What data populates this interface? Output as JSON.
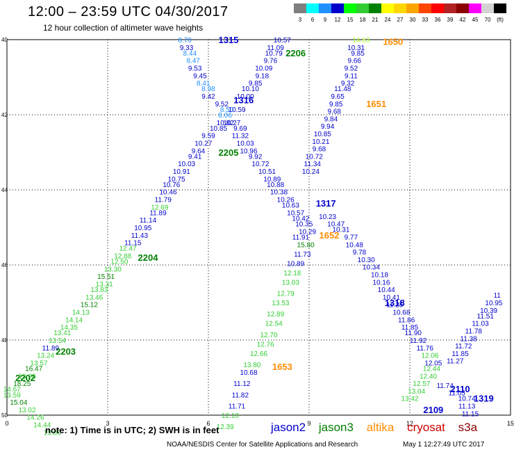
{
  "header": {
    "title": "12:00 – 23:59 UTC 04/30/2017",
    "subtitle": "12 hour collection of altimeter wave heights"
  },
  "color_scale": {
    "unit": "(ft)",
    "bins": [
      {
        "label": "3",
        "color": "#7f7f7f"
      },
      {
        "label": "6",
        "color": "#00ffff"
      },
      {
        "label": "9",
        "color": "#1e90ff"
      },
      {
        "label": "12",
        "color": "#0000cd"
      },
      {
        "label": "15",
        "color": "#00ff00"
      },
      {
        "label": "18",
        "color": "#32cd32"
      },
      {
        "label": "21",
        "color": "#008000"
      },
      {
        "label": "24",
        "color": "#ffff00"
      },
      {
        "label": "27",
        "color": "#ffd700"
      },
      {
        "label": "30",
        "color": "#ffa500"
      },
      {
        "label": "33",
        "color": "#ff4500"
      },
      {
        "label": "36",
        "color": "#ff0000"
      },
      {
        "label": "39",
        "color": "#b22222"
      },
      {
        "label": "42",
        "color": "#8b0000"
      },
      {
        "label": "45",
        "color": "#ff00ff"
      },
      {
        "label": "70",
        "color": "#d3d3d3"
      },
      {
        "label": "(ft)",
        "color": "#000000"
      }
    ]
  },
  "axes": {
    "x_ticks": [
      "0",
      "3",
      "6",
      "9",
      "12",
      "15"
    ],
    "y_ticks": [
      "40",
      "42",
      "44",
      "46",
      "48",
      "50"
    ]
  },
  "passes": [
    {
      "label": "1315",
      "color": "#0000cd",
      "x": 6.6,
      "y": 40.0
    },
    {
      "label": "2206",
      "color": "#008000",
      "x": 8.6,
      "y": 40.35
    },
    {
      "label": "1650",
      "color": "#ff8c00",
      "x": 11.5,
      "y": 40.05
    },
    {
      "label": "1316",
      "color": "#0000cd",
      "x": 7.05,
      "y": 41.6
    },
    {
      "label": "1651",
      "color": "#ff8c00",
      "x": 11.0,
      "y": 41.7
    },
    {
      "label": "2205",
      "color": "#008000",
      "x": 6.6,
      "y": 43.0
    },
    {
      "label": "1317",
      "color": "#0000cd",
      "x": 9.5,
      "y": 44.35
    },
    {
      "label": "1652",
      "color": "#ff8c00",
      "x": 9.6,
      "y": 45.2
    },
    {
      "label": "2204",
      "color": "#008000",
      "x": 4.2,
      "y": 45.8
    },
    {
      "label": "1318",
      "color": "#0000cd",
      "x": 11.55,
      "y": 47.0
    },
    {
      "label": "2203",
      "color": "#008000",
      "x": 1.75,
      "y": 48.3
    },
    {
      "label": "1653",
      "color": "#ff8c00",
      "x": 8.2,
      "y": 48.7
    },
    {
      "label": "2202",
      "color": "#008000",
      "x": 0.55,
      "y": 49.0
    },
    {
      "label": "2110",
      "color": "#0000cd",
      "x": 13.5,
      "y": 49.3
    },
    {
      "label": "1319",
      "color": "#0000cd",
      "x": 14.2,
      "y": 49.55
    },
    {
      "label": "2109",
      "color": "#0000cd",
      "x": 12.7,
      "y": 49.85
    }
  ],
  "observations": [
    {
      "v": "8.70",
      "c": "#1e90ff",
      "x": 5.3,
      "y": 40.0
    },
    {
      "v": "9.33",
      "c": "#0000cd",
      "x": 5.35,
      "y": 40.2
    },
    {
      "v": "8.44",
      "c": "#1e90ff",
      "x": 5.45,
      "y": 40.35
    },
    {
      "v": "8.47",
      "c": "#1e90ff",
      "x": 5.55,
      "y": 40.55
    },
    {
      "v": "9.53",
      "c": "#0000cd",
      "x": 5.6,
      "y": 40.75
    },
    {
      "v": "9.45",
      "c": "#0000cd",
      "x": 5.75,
      "y": 40.95
    },
    {
      "v": "8.41",
      "c": "#1e90ff",
      "x": 5.85,
      "y": 41.15
    },
    {
      "v": "8.98",
      "c": "#1e90ff",
      "x": 6.0,
      "y": 41.3
    },
    {
      "v": "9.42",
      "c": "#0000cd",
      "x": 6.0,
      "y": 41.5
    },
    {
      "v": "9.52",
      "c": "#0000cd",
      "x": 6.4,
      "y": 41.7
    },
    {
      "v": "8.50",
      "c": "#1e90ff",
      "x": 6.55,
      "y": 41.85
    },
    {
      "v": "8.06",
      "c": "#1e90ff",
      "x": 6.5,
      "y": 42.0
    },
    {
      "v": "10.82",
      "c": "#0000cd",
      "x": 6.5,
      "y": 42.2
    },
    {
      "v": "10.85",
      "c": "#0000cd",
      "x": 6.3,
      "y": 42.35
    },
    {
      "v": "9.59",
      "c": "#0000cd",
      "x": 6.0,
      "y": 42.55
    },
    {
      "v": "10.27",
      "c": "#0000cd",
      "x": 5.85,
      "y": 42.75
    },
    {
      "v": "9.64",
      "c": "#0000cd",
      "x": 5.7,
      "y": 42.95
    },
    {
      "v": "9.41",
      "c": "#0000cd",
      "x": 5.6,
      "y": 43.1
    },
    {
      "v": "10.03",
      "c": "#0000cd",
      "x": 5.35,
      "y": 43.3
    },
    {
      "v": "10.91",
      "c": "#0000cd",
      "x": 5.2,
      "y": 43.5
    },
    {
      "v": "10.75",
      "c": "#0000cd",
      "x": 5.05,
      "y": 43.7
    },
    {
      "v": "10.76",
      "c": "#0000cd",
      "x": 4.9,
      "y": 43.85
    },
    {
      "v": "10.46",
      "c": "#0000cd",
      "x": 4.8,
      "y": 44.05
    },
    {
      "v": "11.79",
      "c": "#0000cd",
      "x": 4.65,
      "y": 44.25
    },
    {
      "v": "12.69",
      "c": "#32cd32",
      "x": 4.55,
      "y": 44.45
    },
    {
      "v": "11.89",
      "c": "#0000cd",
      "x": 4.5,
      "y": 44.6
    },
    {
      "v": "11.14",
      "c": "#0000cd",
      "x": 4.2,
      "y": 44.8
    },
    {
      "v": "10.95",
      "c": "#0000cd",
      "x": 4.05,
      "y": 45.0
    },
    {
      "v": "11.43",
      "c": "#0000cd",
      "x": 3.95,
      "y": 45.2
    },
    {
      "v": "11.15",
      "c": "#0000cd",
      "x": 3.75,
      "y": 45.4
    },
    {
      "v": "12.47",
      "c": "#32cd32",
      "x": 3.6,
      "y": 45.55
    },
    {
      "v": "12.88",
      "c": "#32cd32",
      "x": 3.45,
      "y": 45.75
    },
    {
      "v": "12.50",
      "c": "#32cd32",
      "x": 3.35,
      "y": 45.9
    },
    {
      "v": "13.30",
      "c": "#32cd32",
      "x": 3.15,
      "y": 46.1
    },
    {
      "v": "15.51",
      "c": "#008000",
      "x": 2.95,
      "y": 46.3
    },
    {
      "v": "13.31",
      "c": "#32cd32",
      "x": 2.9,
      "y": 46.5
    },
    {
      "v": "13.83",
      "c": "#32cd32",
      "x": 2.75,
      "y": 46.65
    },
    {
      "v": "13.46",
      "c": "#32cd32",
      "x": 2.6,
      "y": 46.85
    },
    {
      "v": "15.12",
      "c": "#008000",
      "x": 2.45,
      "y": 47.05
    },
    {
      "v": "14.13",
      "c": "#32cd32",
      "x": 2.2,
      "y": 47.25
    },
    {
      "v": "14.14",
      "c": "#32cd32",
      "x": 2.0,
      "y": 47.45
    },
    {
      "v": "14.35",
      "c": "#32cd32",
      "x": 1.85,
      "y": 47.65
    },
    {
      "v": "13.41",
      "c": "#32cd32",
      "x": 1.65,
      "y": 47.8
    },
    {
      "v": "13.54",
      "c": "#32cd32",
      "x": 1.5,
      "y": 48.0
    },
    {
      "v": "11.89",
      "c": "#0000cd",
      "x": 1.3,
      "y": 48.2
    },
    {
      "v": "13.24",
      "c": "#32cd32",
      "x": 1.15,
      "y": 48.4
    },
    {
      "v": "13.57",
      "c": "#32cd32",
      "x": 0.95,
      "y": 48.6
    },
    {
      "v": "16.47",
      "c": "#008000",
      "x": 0.8,
      "y": 48.75
    },
    {
      "v": "13.28",
      "c": "#32cd32",
      "x": 0.6,
      "y": 48.95
    },
    {
      "v": "18.25",
      "c": "#008000",
      "x": 0.45,
      "y": 49.15
    },
    {
      "v": "14.67",
      "c": "#32cd32",
      "x": 0.15,
      "y": 49.3
    },
    {
      "v": "13.59",
      "c": "#32cd32",
      "x": 0.15,
      "y": 49.45
    },
    {
      "v": "15.04",
      "c": "#008000",
      "x": 0.35,
      "y": 49.65
    },
    {
      "v": "13.02",
      "c": "#32cd32",
      "x": 0.6,
      "y": 49.85
    },
    {
      "v": "14.26",
      "c": "#32cd32",
      "x": 0.85,
      "y": 50.05
    },
    {
      "v": "14.44",
      "c": "#32cd32",
      "x": 1.05,
      "y": 50.25
    },
    {
      "v": "13.00",
      "c": "#32cd32",
      "x": 1.35,
      "y": 50.45
    },
    {
      "v": "10.57",
      "c": "#0000cd",
      "x": 8.2,
      "y": 40.0
    },
    {
      "v": "11.09",
      "c": "#0000cd",
      "x": 8.0,
      "y": 40.2
    },
    {
      "v": "10.79",
      "c": "#0000cd",
      "x": 7.95,
      "y": 40.35
    },
    {
      "v": "9.76",
      "c": "#0000cd",
      "x": 7.85,
      "y": 40.55
    },
    {
      "v": "10.09",
      "c": "#0000cd",
      "x": 7.65,
      "y": 40.75
    },
    {
      "v": "9.18",
      "c": "#0000cd",
      "x": 7.6,
      "y": 40.95
    },
    {
      "v": "9.85",
      "c": "#0000cd",
      "x": 7.4,
      "y": 41.15
    },
    {
      "v": "10.10",
      "c": "#0000cd",
      "x": 7.25,
      "y": 41.3
    },
    {
      "v": "10.00",
      "c": "#0000cd",
      "x": 7.1,
      "y": 41.5
    },
    {
      "v": "10.59",
      "c": "#0000cd",
      "x": 6.85,
      "y": 41.85
    },
    {
      "v": "10.27",
      "c": "#0000cd",
      "x": 6.7,
      "y": 42.2
    },
    {
      "v": "9.69",
      "c": "#0000cd",
      "x": 6.95,
      "y": 42.35
    },
    {
      "v": "11.32",
      "c": "#0000cd",
      "x": 6.95,
      "y": 42.55
    },
    {
      "v": "10.03",
      "c": "#0000cd",
      "x": 7.1,
      "y": 42.75
    },
    {
      "v": "10.96",
      "c": "#0000cd",
      "x": 7.2,
      "y": 42.95
    },
    {
      "v": "9.92",
      "c": "#0000cd",
      "x": 7.4,
      "y": 43.1
    },
    {
      "v": "10.72",
      "c": "#0000cd",
      "x": 7.55,
      "y": 43.3
    },
    {
      "v": "10.51",
      "c": "#0000cd",
      "x": 7.75,
      "y": 43.5
    },
    {
      "v": "10.89",
      "c": "#0000cd",
      "x": 7.9,
      "y": 43.7
    },
    {
      "v": "10.88",
      "c": "#0000cd",
      "x": 8.0,
      "y": 43.85
    },
    {
      "v": "10.38",
      "c": "#0000cd",
      "x": 8.1,
      "y": 44.05
    },
    {
      "v": "10.26",
      "c": "#0000cd",
      "x": 8.3,
      "y": 44.25
    },
    {
      "v": "10.63",
      "c": "#0000cd",
      "x": 8.45,
      "y": 44.4
    },
    {
      "v": "10.57",
      "c": "#0000cd",
      "x": 8.6,
      "y": 44.6
    },
    {
      "v": "10.42",
      "c": "#0000cd",
      "x": 8.75,
      "y": 44.75
    },
    {
      "v": "10.35",
      "c": "#0000cd",
      "x": 8.85,
      "y": 44.9
    },
    {
      "v": "10.29",
      "c": "#0000cd",
      "x": 8.95,
      "y": 45.1
    },
    {
      "v": "11.91",
      "c": "#0000cd",
      "x": 8.75,
      "y": 45.25
    },
    {
      "v": "15.80",
      "c": "#008000",
      "x": 8.9,
      "y": 45.45
    },
    {
      "v": "11.73",
      "c": "#0000cd",
      "x": 8.8,
      "y": 45.7
    },
    {
      "v": "10.89",
      "c": "#0000cd",
      "x": 8.6,
      "y": 45.95
    },
    {
      "v": "12.18",
      "c": "#32cd32",
      "x": 8.5,
      "y": 46.2
    },
    {
      "v": "13.03",
      "c": "#32cd32",
      "x": 8.45,
      "y": 46.45
    },
    {
      "v": "12.79",
      "c": "#32cd32",
      "x": 8.3,
      "y": 46.75
    },
    {
      "v": "13.53",
      "c": "#32cd32",
      "x": 8.15,
      "y": 47.0
    },
    {
      "v": "12.89",
      "c": "#32cd32",
      "x": 8.0,
      "y": 47.3
    },
    {
      "v": "12.54",
      "c": "#32cd32",
      "x": 7.95,
      "y": 47.55
    },
    {
      "v": "12.70",
      "c": "#32cd32",
      "x": 7.8,
      "y": 47.85
    },
    {
      "v": "12.76",
      "c": "#32cd32",
      "x": 7.7,
      "y": 48.1
    },
    {
      "v": "12.66",
      "c": "#32cd32",
      "x": 7.5,
      "y": 48.35
    },
    {
      "v": "13.80",
      "c": "#32cd32",
      "x": 7.3,
      "y": 48.65
    },
    {
      "v": "10.68",
      "c": "#0000cd",
      "x": 7.2,
      "y": 48.85
    },
    {
      "v": "11.12",
      "c": "#0000cd",
      "x": 7.0,
      "y": 49.15
    },
    {
      "v": "11.82",
      "c": "#0000cd",
      "x": 6.95,
      "y": 49.45
    },
    {
      "v": "11.71",
      "c": "#0000cd",
      "x": 6.85,
      "y": 49.75
    },
    {
      "v": "12.10",
      "c": "#32cd32",
      "x": 6.65,
      "y": 50.0
    },
    {
      "v": "12.39",
      "c": "#32cd32",
      "x": 6.5,
      "y": 50.3
    },
    {
      "v": "14.63",
      "c": "#adff2f",
      "x": 10.55,
      "y": 40.0
    },
    {
      "v": "10.31",
      "c": "#0000cd",
      "x": 10.4,
      "y": 40.2
    },
    {
      "v": "9.85",
      "c": "#0000cd",
      "x": 10.45,
      "y": 40.35
    },
    {
      "v": "9.66",
      "c": "#0000cd",
      "x": 10.35,
      "y": 40.55
    },
    {
      "v": "9.52",
      "c": "#0000cd",
      "x": 10.25,
      "y": 40.75
    },
    {
      "v": "9.11",
      "c": "#0000cd",
      "x": 10.25,
      "y": 40.95
    },
    {
      "v": "9.32",
      "c": "#0000cd",
      "x": 10.15,
      "y": 41.15
    },
    {
      "v": "11.48",
      "c": "#0000cd",
      "x": 10.0,
      "y": 41.3
    },
    {
      "v": "9.65",
      "c": "#0000cd",
      "x": 9.85,
      "y": 41.5
    },
    {
      "v": "9.85",
      "c": "#0000cd",
      "x": 9.8,
      "y": 41.7
    },
    {
      "v": "9.68",
      "c": "#0000cd",
      "x": 9.75,
      "y": 41.9
    },
    {
      "v": "9.84",
      "c": "#0000cd",
      "x": 9.65,
      "y": 42.1
    },
    {
      "v": "9.94",
      "c": "#0000cd",
      "x": 9.55,
      "y": 42.3
    },
    {
      "v": "10.85",
      "c": "#0000cd",
      "x": 9.4,
      "y": 42.5
    },
    {
      "v": "10.21",
      "c": "#0000cd",
      "x": 9.35,
      "y": 42.7
    },
    {
      "v": "9.68",
      "c": "#0000cd",
      "x": 9.3,
      "y": 42.9
    },
    {
      "v": "10.72",
      "c": "#0000cd",
      "x": 9.15,
      "y": 43.1
    },
    {
      "v": "11.34",
      "c": "#0000cd",
      "x": 9.1,
      "y": 43.3
    },
    {
      "v": "10.24",
      "c": "#0000cd",
      "x": 9.05,
      "y": 43.5
    },
    {
      "v": "10.23",
      "c": "#0000cd",
      "x": 9.55,
      "y": 44.7
    },
    {
      "v": "10.47",
      "c": "#0000cd",
      "x": 9.8,
      "y": 44.9
    },
    {
      "v": "10.31",
      "c": "#0000cd",
      "x": 9.95,
      "y": 45.05
    },
    {
      "v": "9.77",
      "c": "#0000cd",
      "x": 10.25,
      "y": 45.25
    },
    {
      "v": "10.48",
      "c": "#0000cd",
      "x": 10.35,
      "y": 45.45
    },
    {
      "v": "9.78",
      "c": "#0000cd",
      "x": 10.5,
      "y": 45.65
    },
    {
      "v": "10.30",
      "c": "#0000cd",
      "x": 10.7,
      "y": 45.85
    },
    {
      "v": "10.34",
      "c": "#0000cd",
      "x": 10.85,
      "y": 46.05
    },
    {
      "v": "10.18",
      "c": "#0000cd",
      "x": 11.1,
      "y": 46.25
    },
    {
      "v": "10.16",
      "c": "#0000cd",
      "x": 11.15,
      "y": 46.45
    },
    {
      "v": "10.44",
      "c": "#0000cd",
      "x": 11.3,
      "y": 46.65
    },
    {
      "v": "10.41",
      "c": "#0000cd",
      "x": 11.45,
      "y": 46.85
    },
    {
      "v": "11.25",
      "c": "#0000cd",
      "x": 11.55,
      "y": 47.05
    },
    {
      "v": "10.68",
      "c": "#0000cd",
      "x": 11.75,
      "y": 47.25
    },
    {
      "v": "11.86",
      "c": "#0000cd",
      "x": 11.9,
      "y": 47.45
    },
    {
      "v": "11.85",
      "c": "#0000cd",
      "x": 12.0,
      "y": 47.65
    },
    {
      "v": "11.90",
      "c": "#0000cd",
      "x": 12.1,
      "y": 47.8
    },
    {
      "v": "11.92",
      "c": "#0000cd",
      "x": 12.25,
      "y": 48.0
    },
    {
      "v": "11.76",
      "c": "#0000cd",
      "x": 12.45,
      "y": 48.2
    },
    {
      "v": "12.06",
      "c": "#32cd32",
      "x": 12.6,
      "y": 48.4
    },
    {
      "v": "12.05",
      "c": "#0000cd",
      "x": 12.7,
      "y": 48.6
    },
    {
      "v": "12.44",
      "c": "#32cd32",
      "x": 12.65,
      "y": 48.75
    },
    {
      "v": "12.40",
      "c": "#32cd32",
      "x": 12.55,
      "y": 48.95
    },
    {
      "v": "12.57",
      "c": "#32cd32",
      "x": 12.35,
      "y": 49.15
    },
    {
      "v": "13.04",
      "c": "#32cd32",
      "x": 12.2,
      "y": 49.35
    },
    {
      "v": "13.42",
      "c": "#32cd32",
      "x": 12.0,
      "y": 49.55
    },
    {
      "v": "11.74",
      "c": "#0000cd",
      "x": 13.05,
      "y": 49.2
    },
    {
      "v": "11.05",
      "c": "#0000cd",
      "x": 13.4,
      "y": 49.4
    },
    {
      "v": "10.74",
      "c": "#0000cd",
      "x": 13.7,
      "y": 49.55
    },
    {
      "v": "11.13",
      "c": "#0000cd",
      "x": 13.7,
      "y": 49.75
    },
    {
      "v": "11.15",
      "c": "#0000cd",
      "x": 13.8,
      "y": 49.95
    },
    {
      "v": "11.27",
      "c": "#0000cd",
      "x": 13.35,
      "y": 48.55
    },
    {
      "v": "11.85",
      "c": "#0000cd",
      "x": 13.5,
      "y": 48.35
    },
    {
      "v": "11.72",
      "c": "#0000cd",
      "x": 13.6,
      "y": 48.15
    },
    {
      "v": "11.38",
      "c": "#0000cd",
      "x": 13.75,
      "y": 47.95
    },
    {
      "v": "11.78",
      "c": "#0000cd",
      "x": 13.9,
      "y": 47.75
    },
    {
      "v": "11.03",
      "c": "#0000cd",
      "x": 14.1,
      "y": 47.55
    },
    {
      "v": "11.51",
      "c": "#0000cd",
      "x": 14.25,
      "y": 47.35
    },
    {
      "v": "10.39",
      "c": "#0000cd",
      "x": 14.35,
      "y": 47.2
    },
    {
      "v": "10.95",
      "c": "#0000cd",
      "x": 14.5,
      "y": 47.0
    },
    {
      "v": "11",
      "c": "#0000cd",
      "x": 14.6,
      "y": 46.8
    }
  ],
  "footer": {
    "note": "note:  1) Time is in UTC;  2) SWH is in feet",
    "legend": [
      {
        "label": "jason2",
        "color": "#0000cd"
      },
      {
        "label": "jason3",
        "color": "#008000"
      },
      {
        "label": "altika",
        "color": "#ff8c00"
      },
      {
        "label": "cryosat",
        "color": "#cc0000"
      },
      {
        "label": "s3a",
        "color": "#8b0000"
      }
    ],
    "credit": "NOAA/NESDIS Center for Satellite Applications and Research",
    "timestamp": "May  1 12:27:49 UTC 2017"
  }
}
